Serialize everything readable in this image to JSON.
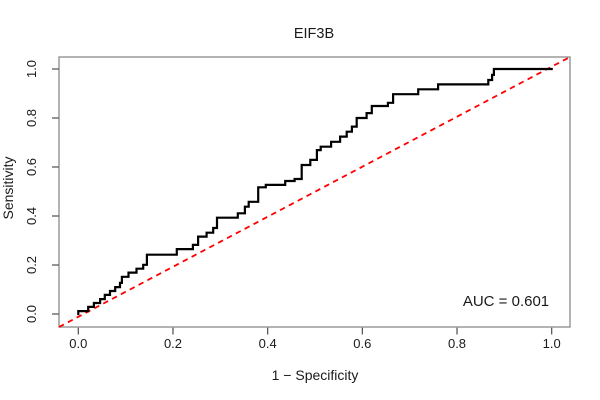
{
  "chart_data": {
    "type": "line",
    "subtype": "roc-step-curve",
    "title": "EIF3B",
    "xlabel": "1 − Specificity",
    "ylabel": "Sensitivity",
    "annotation": "AUC = 0.601",
    "auc_value": 0.601,
    "xlim": [
      0.0,
      1.0
    ],
    "ylim": [
      0.0,
      1.0
    ],
    "grid": "off",
    "legend": "none",
    "x_tick_labels": [
      "0.0",
      "0.2",
      "0.4",
      "0.6",
      "0.8",
      "1.0"
    ],
    "y_tick_labels": [
      "0.0",
      "0.2",
      "0.4",
      "0.6",
      "0.8",
      "1.0"
    ],
    "x_tick_values": [
      0.0,
      0.2,
      0.4,
      0.6,
      0.8,
      1.0
    ],
    "y_tick_values": [
      0.0,
      0.2,
      0.4,
      0.6,
      0.8,
      1.0
    ],
    "colors": {
      "curve": "#000000",
      "reference_line": "#ff0000",
      "plot_border": "#8a8a8a",
      "tick": "#4d4d4d",
      "text": "#1a1a1a",
      "background": "#ffffff"
    },
    "series": [
      {
        "name": "ROC curve",
        "style": "solid-step",
        "color": "#000000",
        "points": [
          [
            0.0,
            0.0
          ],
          [
            0.0,
            0.012
          ],
          [
            0.021,
            0.012
          ],
          [
            0.021,
            0.029
          ],
          [
            0.033,
            0.029
          ],
          [
            0.033,
            0.045
          ],
          [
            0.046,
            0.045
          ],
          [
            0.046,
            0.061
          ],
          [
            0.056,
            0.061
          ],
          [
            0.056,
            0.078
          ],
          [
            0.067,
            0.078
          ],
          [
            0.067,
            0.094
          ],
          [
            0.078,
            0.094
          ],
          [
            0.078,
            0.11
          ],
          [
            0.088,
            0.11
          ],
          [
            0.088,
            0.127
          ],
          [
            0.092,
            0.127
          ],
          [
            0.092,
            0.152
          ],
          [
            0.106,
            0.152
          ],
          [
            0.106,
            0.169
          ],
          [
            0.123,
            0.169
          ],
          [
            0.123,
            0.185
          ],
          [
            0.137,
            0.185
          ],
          [
            0.137,
            0.201
          ],
          [
            0.145,
            0.201
          ],
          [
            0.145,
            0.242
          ],
          [
            0.208,
            0.242
          ],
          [
            0.208,
            0.265
          ],
          [
            0.242,
            0.265
          ],
          [
            0.242,
            0.282
          ],
          [
            0.253,
            0.282
          ],
          [
            0.253,
            0.316
          ],
          [
            0.271,
            0.316
          ],
          [
            0.271,
            0.332
          ],
          [
            0.285,
            0.332
          ],
          [
            0.285,
            0.351
          ],
          [
            0.293,
            0.351
          ],
          [
            0.293,
            0.393
          ],
          [
            0.337,
            0.393
          ],
          [
            0.337,
            0.411
          ],
          [
            0.352,
            0.411
          ],
          [
            0.352,
            0.438
          ],
          [
            0.36,
            0.438
          ],
          [
            0.36,
            0.458
          ],
          [
            0.38,
            0.458
          ],
          [
            0.38,
            0.517
          ],
          [
            0.396,
            0.517
          ],
          [
            0.396,
            0.527
          ],
          [
            0.437,
            0.527
          ],
          [
            0.437,
            0.543
          ],
          [
            0.457,
            0.543
          ],
          [
            0.457,
            0.551
          ],
          [
            0.472,
            0.551
          ],
          [
            0.472,
            0.608
          ],
          [
            0.49,
            0.608
          ],
          [
            0.49,
            0.629
          ],
          [
            0.504,
            0.629
          ],
          [
            0.504,
            0.669
          ],
          [
            0.512,
            0.669
          ],
          [
            0.512,
            0.683
          ],
          [
            0.534,
            0.683
          ],
          [
            0.534,
            0.703
          ],
          [
            0.553,
            0.703
          ],
          [
            0.553,
            0.724
          ],
          [
            0.567,
            0.724
          ],
          [
            0.567,
            0.744
          ],
          [
            0.578,
            0.744
          ],
          [
            0.578,
            0.765
          ],
          [
            0.588,
            0.765
          ],
          [
            0.588,
            0.8
          ],
          [
            0.609,
            0.8
          ],
          [
            0.609,
            0.82
          ],
          [
            0.62,
            0.82
          ],
          [
            0.62,
            0.849
          ],
          [
            0.654,
            0.849
          ],
          [
            0.654,
            0.862
          ],
          [
            0.665,
            0.862
          ],
          [
            0.665,
            0.897
          ],
          [
            0.718,
            0.897
          ],
          [
            0.718,
            0.917
          ],
          [
            0.76,
            0.917
          ],
          [
            0.76,
            0.937
          ],
          [
            0.866,
            0.937
          ],
          [
            0.866,
            0.955
          ],
          [
            0.874,
            0.955
          ],
          [
            0.874,
            0.976
          ],
          [
            0.878,
            0.976
          ],
          [
            0.878,
            1.0
          ],
          [
            1.0,
            1.0
          ]
        ]
      },
      {
        "name": "Reference diagonal (chance line)",
        "style": "dashed",
        "color": "#ff0000",
        "points": [
          [
            0.0,
            0.0
          ],
          [
            1.0,
            1.0
          ]
        ]
      }
    ]
  }
}
